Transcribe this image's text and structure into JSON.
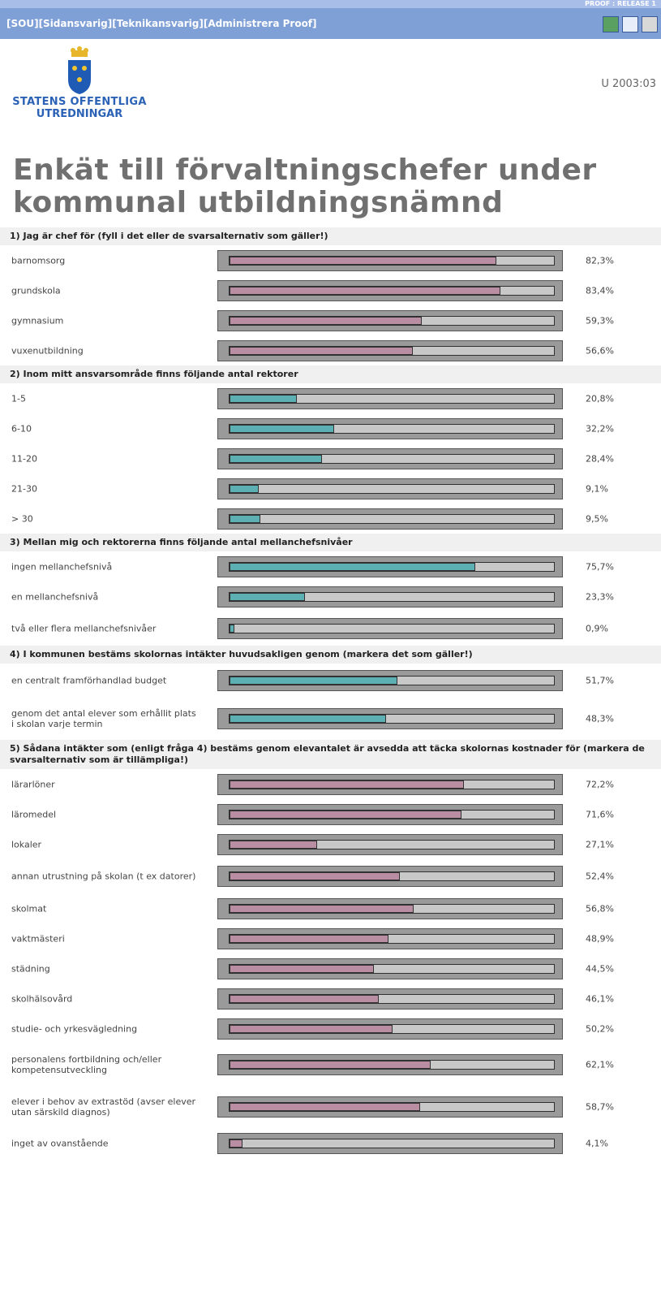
{
  "topstrip": "PROOF : RELEASE 1",
  "nav": {
    "links": [
      "[SOU]",
      "[Sidansvarig]",
      "[Teknikansvarig]",
      "[Administrera Proof]"
    ],
    "icons": [
      "excel-export-icon",
      "edit-icon",
      "print-icon"
    ]
  },
  "logo": {
    "line1": "STATENS OFFENTLIGA",
    "line2": "UTREDNINGAR"
  },
  "docref": "U 2003:03",
  "title": "Enkät till förvaltningschefer under kommunal utbildningsnämnd",
  "colors": {
    "pink": "#b98ea2",
    "teal": "#5cb0b4",
    "nav": "#7f9fd7"
  },
  "questions": [
    {
      "heading": "1) Jag är chef för (fyll i det eller de svarsalternativ som gäller!)",
      "color": "pink",
      "items": [
        {
          "label": "barnomsorg",
          "pct": "82,3%",
          "value": 82.3
        },
        {
          "label": "grundskola",
          "pct": "83,4%",
          "value": 83.4
        },
        {
          "label": "gymnasium",
          "pct": "59,3%",
          "value": 59.3
        },
        {
          "label": "vuxenutbildning",
          "pct": "56,6%",
          "value": 56.6
        }
      ]
    },
    {
      "heading": "2) Inom mitt ansvarsområde finns följande antal rektorer",
      "color": "teal",
      "items": [
        {
          "label": "1-5",
          "pct": "20,8%",
          "value": 20.8
        },
        {
          "label": "6-10",
          "pct": "32,2%",
          "value": 32.2
        },
        {
          "label": "11-20",
          "pct": "28,4%",
          "value": 28.4
        },
        {
          "label": "21-30",
          "pct": "9,1%",
          "value": 9.1
        },
        {
          "label": "> 30",
          "pct": "9,5%",
          "value": 9.5
        }
      ]
    },
    {
      "heading": "3) Mellan mig och rektorerna finns följande antal mellanchefsnivåer",
      "color": "teal",
      "items": [
        {
          "label": "ingen mellanchefsnivå",
          "pct": "75,7%",
          "value": 75.7
        },
        {
          "label": "en mellanchefsnivå",
          "pct": "23,3%",
          "value": 23.3
        },
        {
          "label": "två eller flera mellanchefsnivåer",
          "pct": "0,9%",
          "value": 0.9
        }
      ]
    },
    {
      "heading": "4) I kommunen bestäms skolornas intäkter huvudsakligen genom (markera det som gäller!)",
      "color": "teal",
      "items": [
        {
          "label": "en centralt framförhandlad budget",
          "pct": "51,7%",
          "value": 51.7
        },
        {
          "label": "genom det antal elever som erhållit plats i skolan varje termin",
          "pct": "48,3%",
          "value": 48.3
        }
      ]
    },
    {
      "heading": "5) Sådana intäkter som (enligt fråga 4) bestäms genom elevantalet är avsedda att täcka skolornas kostnader för (markera de svarsalternativ som är tillämpliga!)",
      "color": "pink",
      "items": [
        {
          "label": "lärarlöner",
          "pct": "72,2%",
          "value": 72.2
        },
        {
          "label": "läromedel",
          "pct": "71,6%",
          "value": 71.6
        },
        {
          "label": "lokaler",
          "pct": "27,1%",
          "value": 27.1
        },
        {
          "label": "annan utrustning på skolan (t ex datorer)",
          "pct": "52,4%",
          "value": 52.4
        },
        {
          "label": "skolmat",
          "pct": "56,8%",
          "value": 56.8
        },
        {
          "label": "vaktmästeri",
          "pct": "48,9%",
          "value": 48.9
        },
        {
          "label": "städning",
          "pct": "44,5%",
          "value": 44.5
        },
        {
          "label": "skolhälsovård",
          "pct": "46,1%",
          "value": 46.1
        },
        {
          "label": "studie- och yrkesvägledning",
          "pct": "50,2%",
          "value": 50.2
        },
        {
          "label": "personalens fortbildning och/eller kompetensutveckling",
          "pct": "62,1%",
          "value": 62.1
        },
        {
          "label": "elever i behov av extrastöd (avser elever utan särskild diagnos)",
          "pct": "58,7%",
          "value": 58.7
        },
        {
          "label": "inget av ovanstående",
          "pct": "4,1%",
          "value": 4.1
        }
      ]
    }
  ]
}
